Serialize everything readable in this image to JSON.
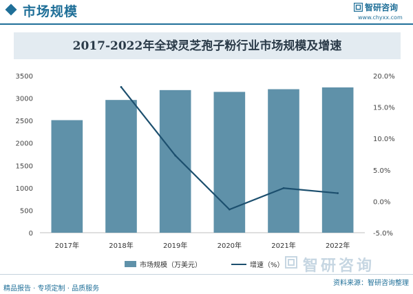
{
  "header": {
    "title": "市场规模",
    "brand_name": "智研咨询",
    "brand_url": "www.chyxx.com"
  },
  "chart_data": {
    "type": "bar",
    "title": "2017-2022年全球灵芝孢子粉行业市场规模及增速",
    "categories": [
      "2017年",
      "2018年",
      "2019年",
      "2020年",
      "2021年",
      "2022年"
    ],
    "series": [
      {
        "name": "市场规模（万美元）",
        "type": "bar",
        "axis": "left",
        "color": "#5f91a9",
        "values": [
          2510,
          2960,
          3180,
          3140,
          3200,
          3240
        ]
      },
      {
        "name": "增速（%）",
        "type": "line",
        "axis": "right",
        "color": "#1c4f6e",
        "values": [
          null,
          18.2,
          7.3,
          -1.3,
          2.1,
          1.3
        ]
      }
    ],
    "y_left": {
      "ylim": [
        0,
        3500
      ],
      "ticks": [
        "0",
        "500",
        "1000",
        "1500",
        "2000",
        "2500",
        "3000",
        "3500"
      ]
    },
    "y_right": {
      "ylim": [
        -5,
        20
      ],
      "ticks": [
        "-5.0%",
        "0.0%",
        "5.0%",
        "10.0%",
        "15.0%",
        "20.0%"
      ]
    },
    "grid": false,
    "legend": "bottom"
  },
  "legend": {
    "bar_label": "市场规模（万美元）",
    "line_label": "增速（%）"
  },
  "watermark": "智研咨询",
  "footer": {
    "left": "精品报告 · 专项定制 · 品质服务",
    "right": "资料来源：智研咨询整理"
  }
}
